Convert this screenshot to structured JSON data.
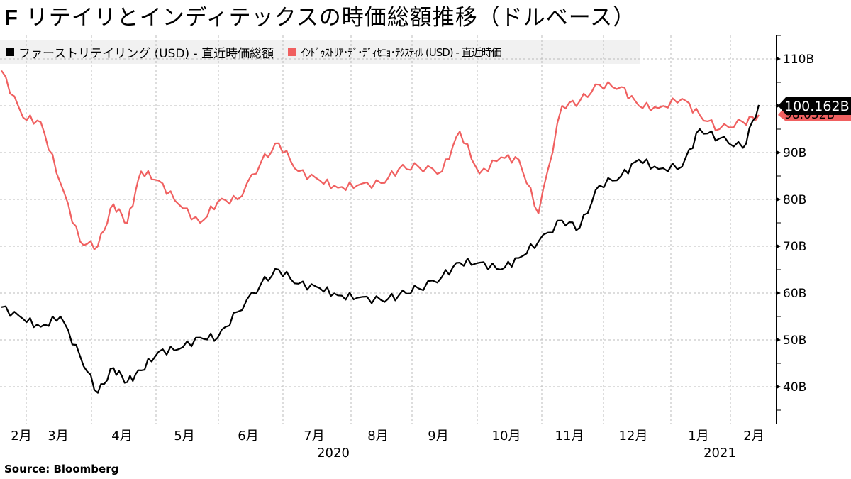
{
  "header": {
    "title_prefix": "F",
    "title_rest": "リテイリとインディテックスの時価総額推移（ドルベース）"
  },
  "legend": [
    {
      "label": "ファーストリテイリング (USD) - 直近時価総額",
      "color": "#000000"
    },
    {
      "label": "ｲﾝﾄﾞｩｽﾄﾘｱ･ﾃﾞ･ﾃﾞｨｾﾆｮ･ﾃｸｽﾃｨﾙ (USD) - 直近時価",
      "color": "#f06060"
    }
  ],
  "last_values": {
    "fast_retailing": "100.162B",
    "inditex": "98.032B"
  },
  "footer": {
    "source": "Source:  Bloomberg"
  },
  "colors": {
    "series1": "#000000",
    "series2": "#f06060",
    "grid": "#bbbbbb",
    "legend_bg": "#f1f1f1"
  },
  "chart_data": {
    "type": "line",
    "title": "Fリテイリとインディテックスの時価総額推移（ドルベース）",
    "xlabel": "",
    "ylabel": "",
    "ylim": [
      33,
      115
    ],
    "y_ticks": [
      "40B",
      "50B",
      "60B",
      "70B",
      "80B",
      "90B",
      "100B",
      "110B"
    ],
    "x_ticks": [
      "2月",
      "3月",
      "4月",
      "5月",
      "6月",
      "7月",
      "8月",
      "9月",
      "10月",
      "11月",
      "12月",
      "1月",
      "2月"
    ],
    "x_year_labels": [
      {
        "label": "2020",
        "under": "7月"
      },
      {
        "label": "2021",
        "under": "1月"
      }
    ],
    "grid": true,
    "legend_position": "top-left",
    "x": [
      "2020-01-21",
      "2020-02-01",
      "2020-02-10",
      "2020-02-20",
      "2020-03-01",
      "2020-03-10",
      "2020-03-18",
      "2020-03-25",
      "2020-04-01",
      "2020-04-10",
      "2020-04-20",
      "2020-05-01",
      "2020-05-10",
      "2020-05-20",
      "2020-06-01",
      "2020-06-10",
      "2020-06-20",
      "2020-07-01",
      "2020-07-10",
      "2020-07-20",
      "2020-08-01",
      "2020-08-10",
      "2020-08-20",
      "2020-09-01",
      "2020-09-10",
      "2020-09-20",
      "2020-10-01",
      "2020-10-10",
      "2020-10-20",
      "2020-11-01",
      "2020-11-10",
      "2020-11-20",
      "2020-12-01",
      "2020-12-10",
      "2020-12-20",
      "2021-01-01",
      "2021-01-10",
      "2021-01-20",
      "2021-02-01",
      "2021-02-09"
    ],
    "series": [
      {
        "name": "ファーストリテイリング (USD) - 直近時価総額",
        "color": "#000000",
        "values": [
          57.0,
          54.5,
          52.8,
          55.0,
          46.5,
          38.7,
          44.0,
          41.0,
          43.5,
          47.5,
          48.0,
          50.5,
          50.5,
          56.0,
          62.0,
          65.0,
          62.0,
          61.0,
          59.5,
          59.0,
          58.5,
          59.5,
          61.0,
          63.5,
          66.5,
          66.5,
          65.0,
          67.5,
          71.0,
          75.5,
          74.0,
          83.0,
          85.0,
          88.5,
          86.5,
          87.0,
          95.0,
          93.0,
          91.0,
          100.16
        ]
      },
      {
        "name": "ｲﾝﾄﾞｩｽﾄﾘｱ･ﾃﾞ･ﾃﾞｨｾﾆｮ･ﾃｸｽﾃｨﾙ (USD) - 直近時価",
        "color": "#f06060",
        "values": [
          107.5,
          97.5,
          96.5,
          83.5,
          71.0,
          70.0,
          79.0,
          75.0,
          86.0,
          84.0,
          79.0,
          75.0,
          79.5,
          80.0,
          88.0,
          92.0,
          86.0,
          84.0,
          82.5,
          83.0,
          83.5,
          86.5,
          87.0,
          86.0,
          94.5,
          85.5,
          89.0,
          88.5,
          77.0,
          100.0,
          101.0,
          104.5,
          104.0,
          100.0,
          99.5,
          101.5,
          98.0,
          95.0,
          96.5,
          98.03
        ]
      }
    ]
  }
}
